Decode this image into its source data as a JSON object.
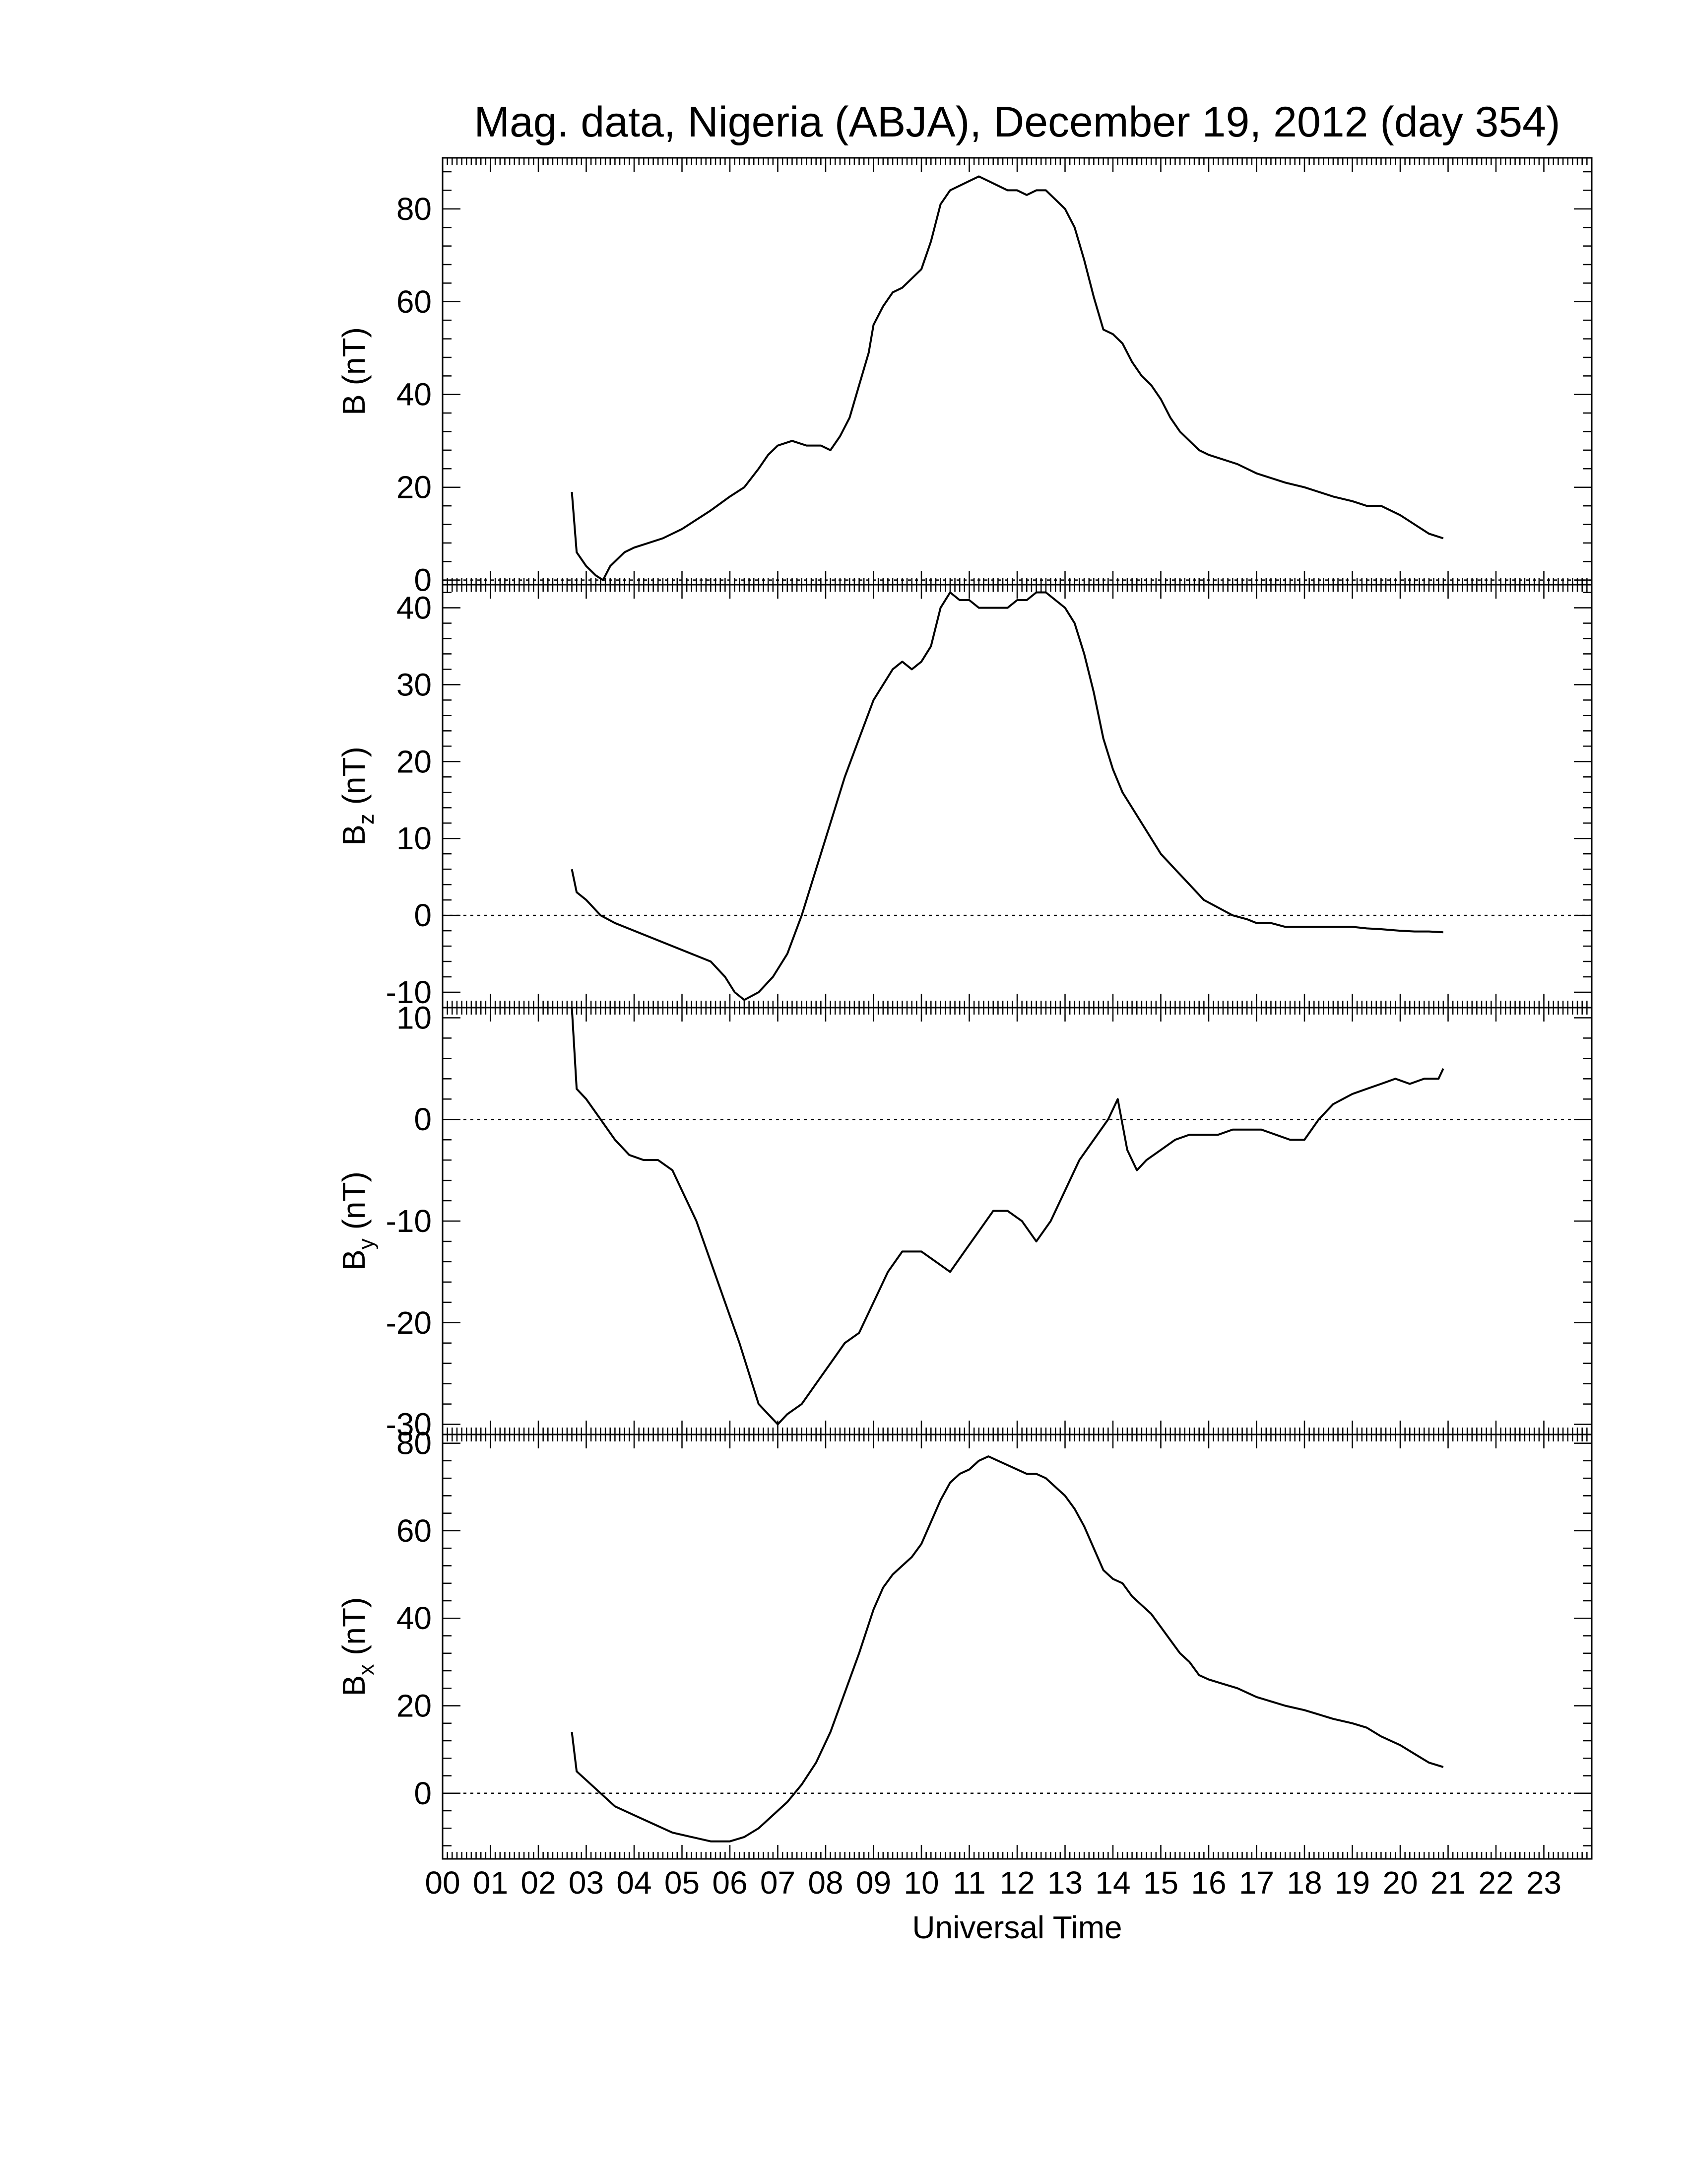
{
  "chart_data": {
    "type": "line",
    "title": "Mag. data, Nigeria (ABJA), December 19, 2012 (day 354)",
    "xlabel": "Universal Time",
    "xlim": [
      0,
      24
    ],
    "x_tick_labels": [
      "00",
      "01",
      "02",
      "03",
      "04",
      "05",
      "06",
      "07",
      "08",
      "09",
      "10",
      "11",
      "12",
      "13",
      "14",
      "15",
      "16",
      "17",
      "18",
      "19",
      "20",
      "21",
      "22",
      "23"
    ],
    "grid": false,
    "panels": [
      {
        "id": "B",
        "ylabel": "B (nT)",
        "ylim": [
          -1,
          91
        ],
        "yticks": [
          0,
          20,
          40,
          60,
          80
        ],
        "zero_line": true,
        "series": {
          "x": [
            2.7,
            2.8,
            3.0,
            3.2,
            3.35,
            3.5,
            3.8,
            4.0,
            4.3,
            4.6,
            5.0,
            5.3,
            5.6,
            6.0,
            6.3,
            6.6,
            6.8,
            7.0,
            7.3,
            7.6,
            7.9,
            8.1,
            8.3,
            8.5,
            8.7,
            8.9,
            9.0,
            9.2,
            9.4,
            9.6,
            9.8,
            10.0,
            10.2,
            10.4,
            10.6,
            10.8,
            11.0,
            11.2,
            11.4,
            11.6,
            11.8,
            12.0,
            12.2,
            12.4,
            12.6,
            12.8,
            13.0,
            13.2,
            13.4,
            13.6,
            13.8,
            14.0,
            14.2,
            14.4,
            14.6,
            14.8,
            15.0,
            15.2,
            15.4,
            15.6,
            15.8,
            16.0,
            16.3,
            16.6,
            17.0,
            17.3,
            17.6,
            18.0,
            18.3,
            18.6,
            19.0,
            19.3,
            19.6,
            20.0,
            20.3,
            20.6,
            20.9
          ],
          "y": [
            19,
            6,
            3,
            1,
            0,
            3,
            6,
            7,
            8,
            9,
            11,
            13,
            15,
            18,
            20,
            24,
            27,
            29,
            30,
            29,
            29,
            28,
            31,
            35,
            42,
            49,
            55,
            59,
            62,
            63,
            65,
            67,
            73,
            81,
            84,
            85,
            86,
            87,
            86,
            85,
            84,
            84,
            83,
            84,
            84,
            82,
            80,
            76,
            69,
            61,
            54,
            53,
            51,
            47,
            44,
            42,
            39,
            35,
            32,
            30,
            28,
            27,
            26,
            25,
            23,
            22,
            21,
            20,
            19,
            18,
            17,
            16,
            16,
            14,
            12,
            10,
            9
          ]
        }
      },
      {
        "id": "Bz",
        "ylabel": "B",
        "ylabel_sub": "z",
        "ylabel_unit": "(nT)",
        "ylim": [
          -12,
          43
        ],
        "yticks": [
          -10,
          0,
          10,
          20,
          30,
          40
        ],
        "zero_line": true,
        "series": {
          "x": [
            2.7,
            2.8,
            3.0,
            3.3,
            3.6,
            4.0,
            4.4,
            4.8,
            5.2,
            5.6,
            5.9,
            6.1,
            6.3,
            6.6,
            6.9,
            7.2,
            7.5,
            7.8,
            8.1,
            8.4,
            8.7,
            9.0,
            9.2,
            9.4,
            9.6,
            9.8,
            10.0,
            10.2,
            10.4,
            10.6,
            10.8,
            11.0,
            11.2,
            11.4,
            11.6,
            11.8,
            12.0,
            12.2,
            12.4,
            12.6,
            12.8,
            13.0,
            13.2,
            13.4,
            13.6,
            13.8,
            14.0,
            14.2,
            14.4,
            14.6,
            14.8,
            15.0,
            15.3,
            15.6,
            15.9,
            16.2,
            16.5,
            16.8,
            17.0,
            17.3,
            17.6,
            18.0,
            18.3,
            18.6,
            19.0,
            19.3,
            19.6,
            20.0,
            20.3,
            20.6,
            20.9
          ],
          "y": [
            6,
            3,
            2,
            0,
            -1,
            -2,
            -3,
            -4,
            -5,
            -6,
            -8,
            -10,
            -11,
            -10,
            -8,
            -5,
            0,
            6,
            12,
            18,
            23,
            28,
            30,
            32,
            33,
            32,
            33,
            35,
            40,
            42,
            41,
            41,
            40,
            40,
            40,
            40,
            41,
            41,
            42,
            42,
            41,
            40,
            38,
            34,
            29,
            23,
            19,
            16,
            14,
            12,
            10,
            8,
            6,
            4,
            2,
            1,
            0,
            -0.5,
            -1,
            -1,
            -1.5,
            -1.5,
            -1.5,
            -1.5,
            -1.5,
            -1.7,
            -1.8,
            -2,
            -2.1,
            -2.1,
            -2.2
          ]
        }
      },
      {
        "id": "By",
        "ylabel": "B",
        "ylabel_sub": "y",
        "ylabel_unit": "(nT)",
        "ylim": [
          -31,
          11
        ],
        "yticks": [
          -30,
          -20,
          -10,
          0,
          10
        ],
        "zero_line": true,
        "series": {
          "x": [
            2.7,
            2.8,
            3.0,
            3.3,
            3.6,
            3.9,
            4.2,
            4.5,
            4.8,
            5.0,
            5.3,
            5.6,
            5.9,
            6.2,
            6.4,
            6.6,
            6.8,
            7.0,
            7.2,
            7.5,
            7.8,
            8.1,
            8.4,
            8.7,
            9.0,
            9.3,
            9.6,
            9.8,
            10.0,
            10.3,
            10.6,
            10.9,
            11.2,
            11.5,
            11.8,
            12.1,
            12.4,
            12.7,
            13.0,
            13.3,
            13.6,
            13.9,
            14.1,
            14.3,
            14.5,
            14.7,
            15.0,
            15.3,
            15.6,
            15.9,
            16.2,
            16.5,
            16.8,
            17.1,
            17.4,
            17.7,
            18.0,
            18.3,
            18.6,
            19.0,
            19.3,
            19.6,
            19.9,
            20.2,
            20.5,
            20.8,
            20.9
          ],
          "y": [
            11,
            3,
            2,
            0,
            -2,
            -3.5,
            -4,
            -4,
            -5,
            -7,
            -10,
            -14,
            -18,
            -22,
            -25,
            -28,
            -29,
            -30,
            -29,
            -28,
            -26,
            -24,
            -22,
            -21,
            -18,
            -15,
            -13,
            -13,
            -13,
            -14,
            -15,
            -13,
            -11,
            -9,
            -9,
            -10,
            -12,
            -10,
            -7,
            -4,
            -2,
            0,
            2,
            -3,
            -5,
            -4,
            -3,
            -2,
            -1.5,
            -1.5,
            -1.5,
            -1,
            -1,
            -1,
            -1.5,
            -2,
            -2,
            0,
            1.5,
            2.5,
            3,
            3.5,
            4,
            3.5,
            4,
            4,
            5
          ]
        }
      },
      {
        "id": "Bx",
        "ylabel": "B",
        "ylabel_sub": "x",
        "ylabel_unit": "(nT)",
        "ylim": [
          -15,
          82
        ],
        "yticks": [
          0,
          20,
          40,
          60,
          80
        ],
        "zero_line": true,
        "series": {
          "x": [
            2.7,
            2.8,
            3.0,
            3.3,
            3.6,
            4.0,
            4.4,
            4.8,
            5.2,
            5.6,
            6.0,
            6.3,
            6.6,
            6.9,
            7.2,
            7.5,
            7.8,
            8.1,
            8.4,
            8.7,
            9.0,
            9.2,
            9.4,
            9.6,
            9.8,
            10.0,
            10.2,
            10.4,
            10.6,
            10.8,
            11.0,
            11.2,
            11.4,
            11.6,
            11.8,
            12.0,
            12.2,
            12.4,
            12.6,
            12.8,
            13.0,
            13.2,
            13.4,
            13.6,
            13.8,
            14.0,
            14.2,
            14.4,
            14.6,
            14.8,
            15.0,
            15.2,
            15.4,
            15.6,
            15.8,
            16.0,
            16.3,
            16.6,
            17.0,
            17.3,
            17.6,
            18.0,
            18.3,
            18.6,
            19.0,
            19.3,
            19.6,
            20.0,
            20.3,
            20.6,
            20.9
          ],
          "y": [
            14,
            5,
            3,
            0,
            -3,
            -5,
            -7,
            -9,
            -10,
            -11,
            -11,
            -10,
            -8,
            -5,
            -2,
            2,
            7,
            14,
            23,
            32,
            42,
            47,
            50,
            52,
            54,
            57,
            62,
            67,
            71,
            73,
            74,
            76,
            77,
            76,
            75,
            74,
            73,
            73,
            72,
            70,
            68,
            65,
            61,
            56,
            51,
            49,
            48,
            45,
            43,
            41,
            38,
            35,
            32,
            30,
            27,
            26,
            25,
            24,
            22,
            21,
            20,
            19,
            18,
            17,
            16,
            15,
            13,
            11,
            9,
            7,
            6
          ]
        }
      }
    ]
  }
}
